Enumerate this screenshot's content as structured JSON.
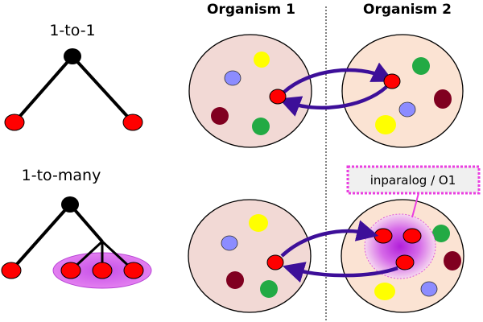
{
  "columns": {
    "organism1": "Organism 1",
    "organism2": "Organism 2"
  },
  "trees": {
    "one_to_one": "1-to-1",
    "one_to_many": "1-to-many"
  },
  "callout": {
    "label": "inparalog / O1"
  },
  "colors": {
    "ortholog_red": "#ff0000",
    "node_black": "#000000",
    "arrow_purple": "#3d0f99",
    "organism1_fill": "#f2d9d5",
    "organism2_fill": "#fbe3d3",
    "highlight_magenta": "#d24fe6",
    "callout_border": "#ea3ee0",
    "callout_fill": "#f0f0f0",
    "gene_yellow": "#ffff00",
    "gene_blue": "#8c8cff",
    "gene_maroon": "#800020",
    "gene_green": "#22aa44"
  }
}
